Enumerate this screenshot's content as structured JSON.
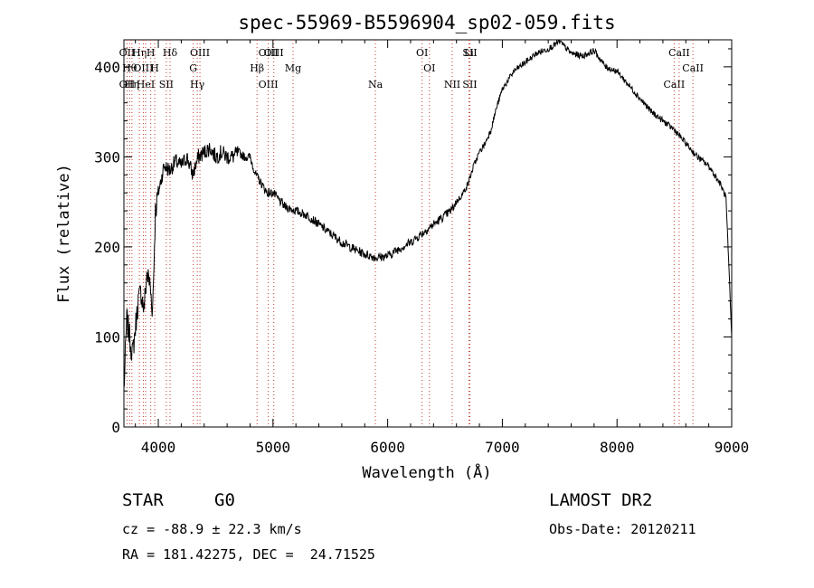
{
  "chart_data": {
    "type": "line",
    "title": "spec-55969-B5596904_sp02-059.fits",
    "xlabel": "Wavelength (Å)",
    "ylabel": "Flux (relative)",
    "xlim": [
      3700,
      9000
    ],
    "ylim": [
      0,
      430
    ],
    "x_ticks": [
      4000,
      5000,
      6000,
      7000,
      8000,
      9000
    ],
    "y_ticks": [
      0,
      100,
      200,
      300,
      400
    ],
    "grid": false,
    "legend": "none",
    "line_color": "#000000",
    "marker_color": "#c0392b",
    "series": [
      {
        "x": [
          3700,
          3725,
          3750,
          3775,
          3800,
          3825,
          3850,
          3875,
          3900,
          3925,
          3950,
          3975,
          4000,
          4050,
          4100,
          4150,
          4200,
          4250,
          4300,
          4350,
          4400,
          4450,
          4500,
          4550,
          4600,
          4650,
          4700,
          4750,
          4800,
          4850,
          4900,
          4950,
          5000,
          5100,
          5200,
          5300,
          5400,
          5500,
          5600,
          5700,
          5800,
          5900,
          6000,
          6100,
          6200,
          6300,
          6400,
          6500,
          6550,
          6600,
          6650,
          6700,
          6750,
          6800,
          6850,
          6900,
          6950,
          7000,
          7050,
          7100,
          7200,
          7300,
          7400,
          7500,
          7600,
          7700,
          7800,
          7900,
          8000,
          8100,
          8200,
          8300,
          8400,
          8500,
          8600,
          8700,
          8800,
          8900,
          8950,
          9000
        ],
        "y": [
          40,
          120,
          100,
          80,
          110,
          140,
          150,
          130,
          170,
          160,
          130,
          240,
          260,
          290,
          285,
          295,
          290,
          300,
          280,
          300,
          305,
          310,
          300,
          305,
          300,
          300,
          305,
          300,
          300,
          280,
          270,
          260,
          260,
          245,
          240,
          235,
          225,
          215,
          205,
          198,
          192,
          188,
          190,
          198,
          205,
          215,
          225,
          235,
          240,
          250,
          258,
          270,
          290,
          305,
          315,
          330,
          355,
          375,
          385,
          395,
          405,
          415,
          420,
          428,
          415,
          412,
          418,
          400,
          395,
          380,
          365,
          350,
          340,
          330,
          315,
          300,
          290,
          270,
          255,
          100
        ]
      }
    ],
    "line_markers": [
      {
        "x": 3727,
        "labels": [
          "OII",
          "OII"
        ]
      },
      {
        "x": 3750,
        "labels": [
          "Hθ"
        ]
      },
      {
        "x": 3770,
        "labels": [
          "Hη"
        ]
      },
      {
        "x": 3835,
        "labels": [
          "Hη"
        ]
      },
      {
        "x": 3869,
        "labels": [
          "OIII"
        ]
      },
      {
        "x": 3889,
        "labels": [
          "HeI"
        ]
      },
      {
        "x": 3934,
        "labels": [
          "H"
        ]
      },
      {
        "x": 3969,
        "labels": [
          "H"
        ]
      },
      {
        "x": 4070,
        "labels": [
          "SII"
        ]
      },
      {
        "x": 4102,
        "labels": [
          "Hδ"
        ]
      },
      {
        "x": 4305,
        "labels": [
          "G"
        ]
      },
      {
        "x": 4340,
        "labels": [
          "Hγ"
        ]
      },
      {
        "x": 4363,
        "labels": [
          "OIII"
        ]
      },
      {
        "x": 4861,
        "labels": [
          "Hβ"
        ]
      },
      {
        "x": 4959,
        "labels": [
          "OIII",
          "OIII"
        ]
      },
      {
        "x": 5007,
        "labels": [
          "OIII"
        ]
      },
      {
        "x": 5175,
        "labels": [
          "Mg"
        ]
      },
      {
        "x": 5893,
        "labels": [
          "Na"
        ]
      },
      {
        "x": 6300,
        "labels": [
          "OI"
        ]
      },
      {
        "x": 6364,
        "labels": [
          "OI"
        ]
      },
      {
        "x": 6563,
        "labels": [
          "NII"
        ]
      },
      {
        "x": 6708,
        "labels": [
          "Li"
        ]
      },
      {
        "x": 6717,
        "labels": [
          "SII",
          "SII"
        ]
      },
      {
        "x": 8498,
        "labels": [
          "CaII"
        ]
      },
      {
        "x": 8542,
        "labels": [
          "CaII"
        ]
      },
      {
        "x": 8662,
        "labels": [
          "CaII"
        ]
      }
    ]
  },
  "info": {
    "class_label": "STAR",
    "subclass": "G0",
    "survey": "LAMOST DR2",
    "cz_text": "cz = -88.9 ± 22.3 km/s",
    "obs_date": "Obs-Date: 20120211",
    "coords": "RA = 181.42275, DEC =  24.71525"
  }
}
